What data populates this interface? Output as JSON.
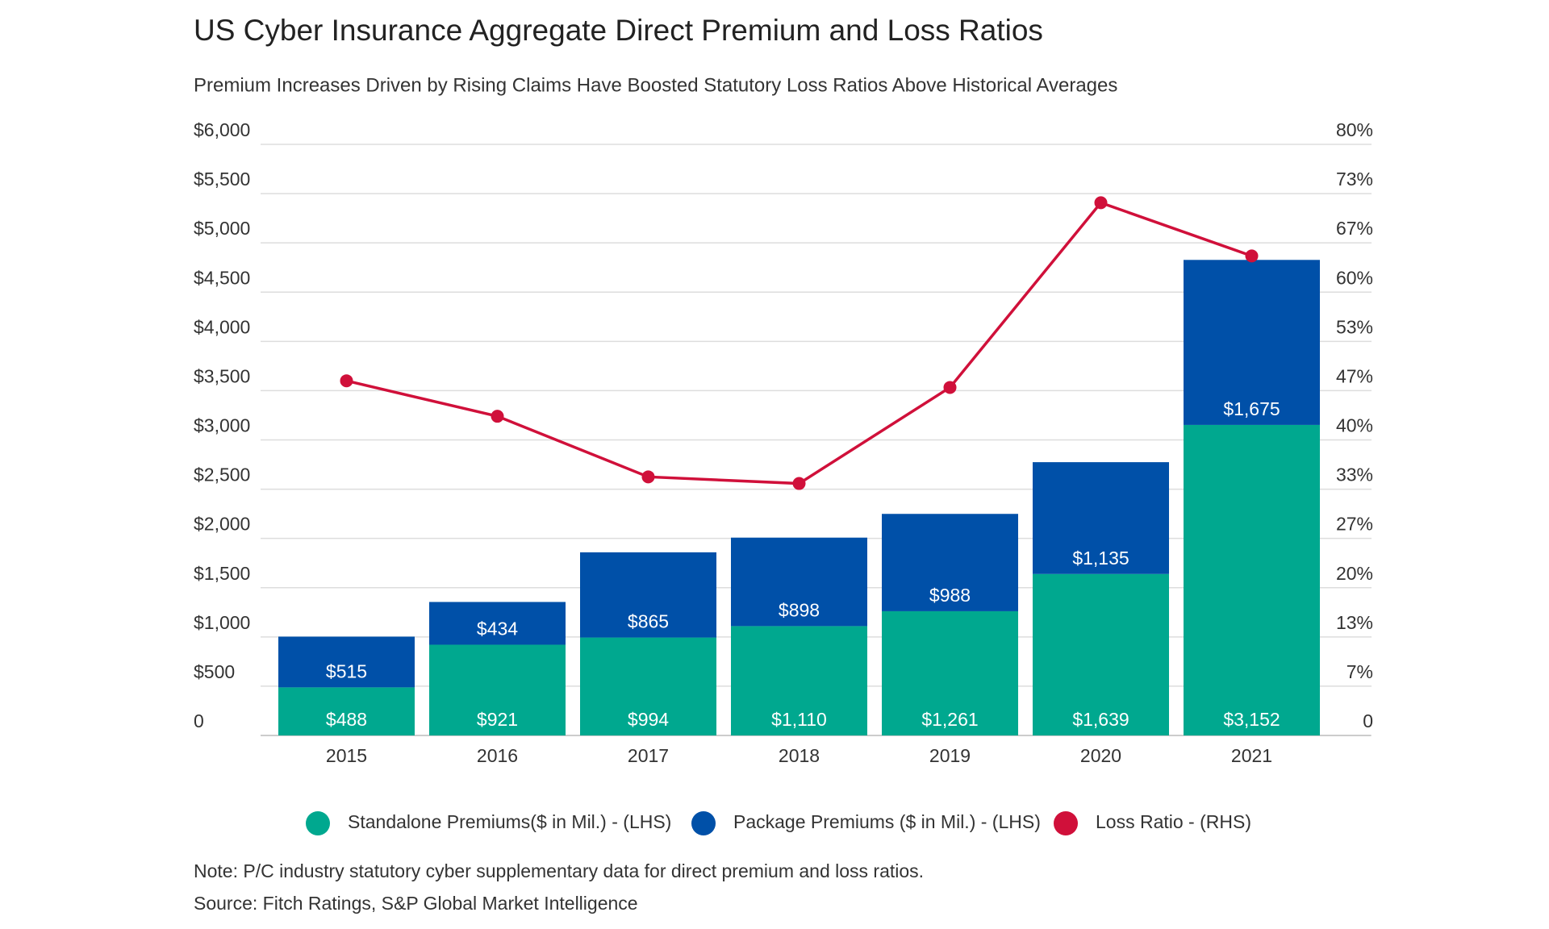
{
  "chart_data": {
    "type": "bar",
    "title": "US Cyber Insurance Aggregate Direct Premium and Loss Ratios",
    "subtitle": "Premium Increases Driven by Rising Claims Have Boosted Statutory Loss Ratios Above Historical Averages",
    "categories": [
      "2015",
      "2016",
      "2017",
      "2018",
      "2019",
      "2020",
      "2021"
    ],
    "stacked": true,
    "series": [
      {
        "name": "Standalone Premiums($ in Mil.) - (LHS)",
        "type": "bar",
        "color": "#00a88f",
        "values": [
          488,
          921,
          994,
          1110,
          1261,
          1639,
          3152
        ],
        "value_labels": [
          "$488",
          "$921",
          "$994",
          "$1,110",
          "$1,261",
          "$1,639",
          "$3,152"
        ]
      },
      {
        "name": "Package Premiums ($ in Mil.) - (LHS)",
        "type": "bar",
        "color": "#0050a8",
        "values": [
          515,
          434,
          865,
          898,
          988,
          1135,
          1675
        ],
        "value_labels": [
          "$515",
          "$434",
          "$865",
          "$898",
          "$988",
          "$1,135",
          "$1,675"
        ]
      },
      {
        "name": "Loss Ratio - (RHS)",
        "type": "line",
        "axis": "y2",
        "color": "#d0103a",
        "values": [
          48.0,
          43.2,
          35.0,
          34.1,
          47.1,
          72.1,
          64.9
        ]
      }
    ],
    "ylim": [
      0,
      6000
    ],
    "yticks": [
      0,
      {
        "value": 500,
        "label": "$500"
      },
      {
        "value": 1000,
        "label": "$1,000"
      },
      {
        "value": 1500,
        "label": "$1,500"
      },
      {
        "value": 2000,
        "label": "$2,000"
      },
      {
        "value": 2500,
        "label": "$2,500"
      },
      {
        "value": 3000,
        "label": "$3,000"
      },
      {
        "value": 3500,
        "label": "$3,500"
      },
      {
        "value": 4000,
        "label": "$4,000"
      },
      {
        "value": 4500,
        "label": "$4,500"
      },
      {
        "value": 5000,
        "label": "$5,000"
      },
      {
        "value": 5500,
        "label": "$5,500"
      },
      {
        "value": 6000,
        "label": "$6,000"
      }
    ],
    "y2lim": [
      0,
      80
    ],
    "y2ticks": [
      0,
      {
        "value": 6.67,
        "label": "7%"
      },
      {
        "value": 13.33,
        "label": "13%"
      },
      {
        "value": 20,
        "label": "20%"
      },
      {
        "value": 26.67,
        "label": "27%"
      },
      {
        "value": 33.33,
        "label": "33%"
      },
      {
        "value": 40,
        "label": "40%"
      },
      {
        "value": 46.67,
        "label": "47%"
      },
      {
        "value": 53.33,
        "label": "53%"
      },
      {
        "value": 60,
        "label": "60%"
      },
      {
        "value": 66.67,
        "label": "67%"
      },
      {
        "value": 73.33,
        "label": "73%"
      },
      {
        "value": 80,
        "label": "80%"
      }
    ],
    "grid": true,
    "legend": "bottom",
    "note": "Note: P/C industry statutory cyber supplementary data for direct premium and loss ratios.",
    "source": "Source: Fitch Ratings, S&P Global Market Intelligence"
  }
}
